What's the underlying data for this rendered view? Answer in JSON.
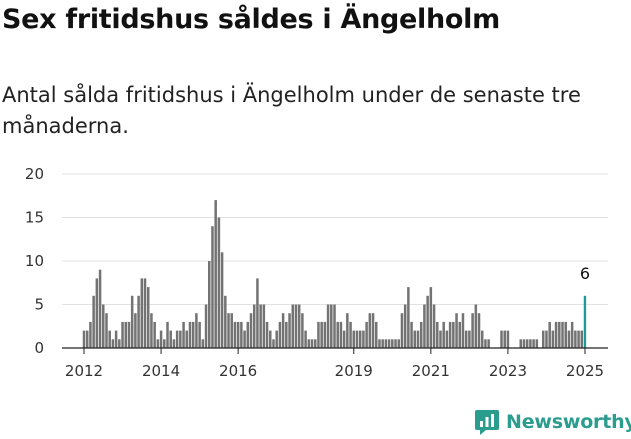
{
  "title": "Sex fritidshus såldes i Ängelholm",
  "subtitle": "Antal sålda fritidshus i Ängelholm under de senaste tre månaderna.",
  "brand": {
    "name": "Newsworthy",
    "icon": "newsworthy-chart-icon",
    "color": "#2a9d8f"
  },
  "colors": {
    "bar": "#737373",
    "highlight": "#1a9b98",
    "grid": "#e2e2e2",
    "axis": "#222222"
  },
  "chart_data": {
    "type": "bar",
    "xlabel": "",
    "ylabel": "",
    "ylim": [
      0,
      20
    ],
    "yticks": [
      0,
      5,
      10,
      15,
      20
    ],
    "grid": true,
    "x_tick_labels": [
      "2012",
      "2014",
      "2016",
      "2019",
      "2021",
      "2023",
      "2025"
    ],
    "x_start": "2012-01",
    "x_end": "2025-05",
    "series": [
      {
        "values": [
          2,
          2,
          3,
          6,
          8,
          9,
          5,
          4,
          2,
          1,
          2,
          1,
          3,
          3,
          3,
          6,
          4,
          6,
          8,
          8,
          7,
          4,
          3,
          1,
          2,
          1,
          3,
          2,
          1,
          2,
          2,
          3,
          2,
          3,
          3,
          4,
          3,
          1,
          5,
          10,
          14,
          17,
          15,
          11,
          6,
          4,
          4,
          3,
          3,
          3,
          2,
          3,
          4,
          5,
          8,
          5,
          5,
          3,
          2,
          1,
          2,
          3,
          4,
          3,
          4,
          5,
          5,
          5,
          4,
          2,
          1,
          1,
          1,
          3,
          3,
          3,
          5,
          5,
          5,
          3,
          3,
          2,
          4,
          3,
          2,
          2,
          2,
          2,
          3,
          4,
          4,
          3,
          1,
          1,
          1,
          1,
          1,
          1,
          1,
          4,
          5,
          7,
          3,
          2,
          2,
          3,
          5,
          6,
          7,
          5,
          3,
          2,
          3,
          2,
          3,
          3,
          4,
          3,
          4,
          2,
          2,
          4,
          5,
          4,
          2,
          1,
          1,
          0,
          0,
          0,
          2,
          2,
          2,
          0,
          0,
          0,
          1,
          1,
          1,
          1,
          1,
          1,
          0,
          2,
          2,
          3,
          2,
          3,
          3,
          3,
          3,
          2,
          3,
          2,
          2,
          2,
          6
        ]
      }
    ],
    "annotation": {
      "label": "6",
      "value": 6
    }
  }
}
